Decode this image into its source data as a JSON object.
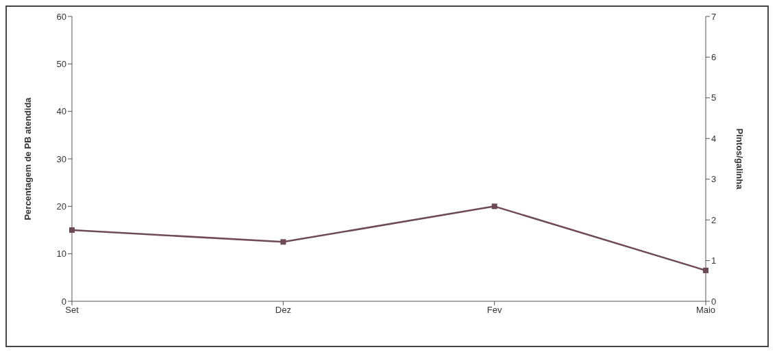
{
  "chart_data": {
    "type": "line",
    "categories": [
      "Set",
      "Dez",
      "Fev",
      "Maio"
    ],
    "series": [
      {
        "color": "#6e4a55",
        "values": [
          15,
          12.5,
          20,
          6.5
        ]
      }
    ],
    "ylabel": "Percentagem de PB atendida",
    "y2label": "Pintos/galinha",
    "ylim": [
      0,
      60
    ],
    "yticks": [
      0,
      10,
      20,
      30,
      40,
      50,
      60
    ],
    "y2lim": [
      0,
      7
    ],
    "y2ticks": [
      0,
      1,
      2,
      3,
      4,
      5,
      6,
      7
    ],
    "marker": "square",
    "line_style": "solid",
    "grid": false,
    "legend": false
  }
}
